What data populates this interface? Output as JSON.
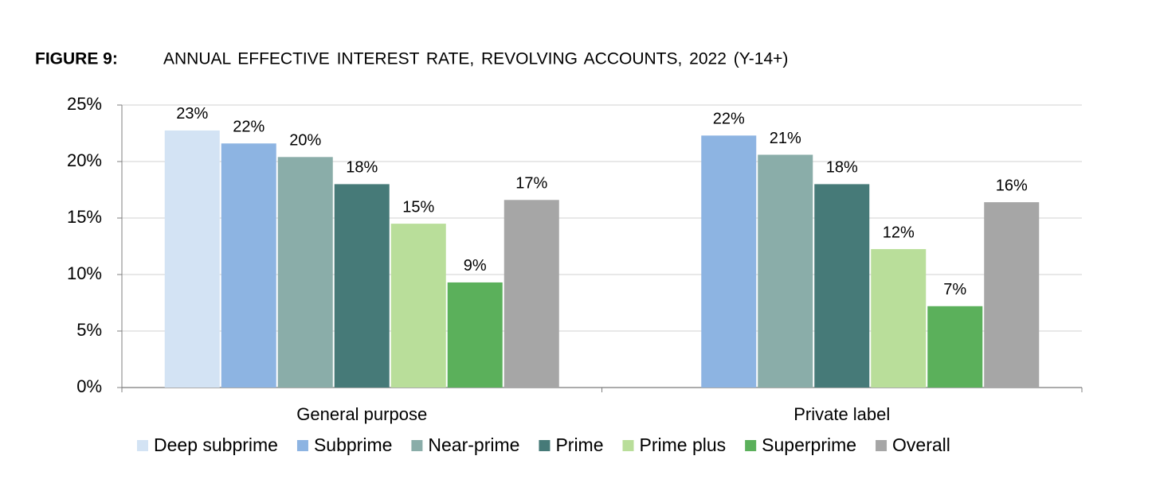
{
  "chart_data": {
    "type": "bar",
    "figure_label": "FIGURE 9:",
    "title": "ANNUAL EFFECTIVE INTEREST RATE, REVOLVING ACCOUNTS, 2022 (Y-14+)",
    "categories": [
      "General purpose",
      "Private label"
    ],
    "series": [
      {
        "name": "Deep subprime",
        "color": "#d3e3f4",
        "values": [
          22.75,
          null
        ],
        "value_labels": [
          "23%",
          null
        ]
      },
      {
        "name": "Subprime",
        "color": "#8db4e2",
        "values": [
          21.6,
          22.3
        ],
        "value_labels": [
          "22%",
          "22%"
        ]
      },
      {
        "name": "Near-prime",
        "color": "#8aada9",
        "values": [
          20.4,
          20.6
        ],
        "value_labels": [
          "20%",
          "21%"
        ]
      },
      {
        "name": "Prime",
        "color": "#467a78",
        "values": [
          18.0,
          18.0
        ],
        "value_labels": [
          "18%",
          "18%"
        ]
      },
      {
        "name": "Prime plus",
        "color": "#b9de9a",
        "values": [
          14.5,
          12.25
        ],
        "value_labels": [
          "15%",
          "12%"
        ]
      },
      {
        "name": "Superprime",
        "color": "#5bb05b",
        "values": [
          9.3,
          7.2
        ],
        "value_labels": [
          "9%",
          "7%"
        ]
      },
      {
        "name": "Overall",
        "color": "#a6a6a6",
        "values": [
          16.6,
          16.4
        ],
        "value_labels": [
          "17%",
          "16%"
        ]
      }
    ],
    "ylim": [
      0,
      25
    ],
    "yticks": [
      {
        "value": 0,
        "label": "0%"
      },
      {
        "value": 5,
        "label": "5%"
      },
      {
        "value": 10,
        "label": "10%"
      },
      {
        "value": 15,
        "label": "15%"
      },
      {
        "value": 20,
        "label": "20%"
      },
      {
        "value": 25,
        "label": "25%"
      }
    ],
    "grid": true,
    "legend": "bottom"
  }
}
